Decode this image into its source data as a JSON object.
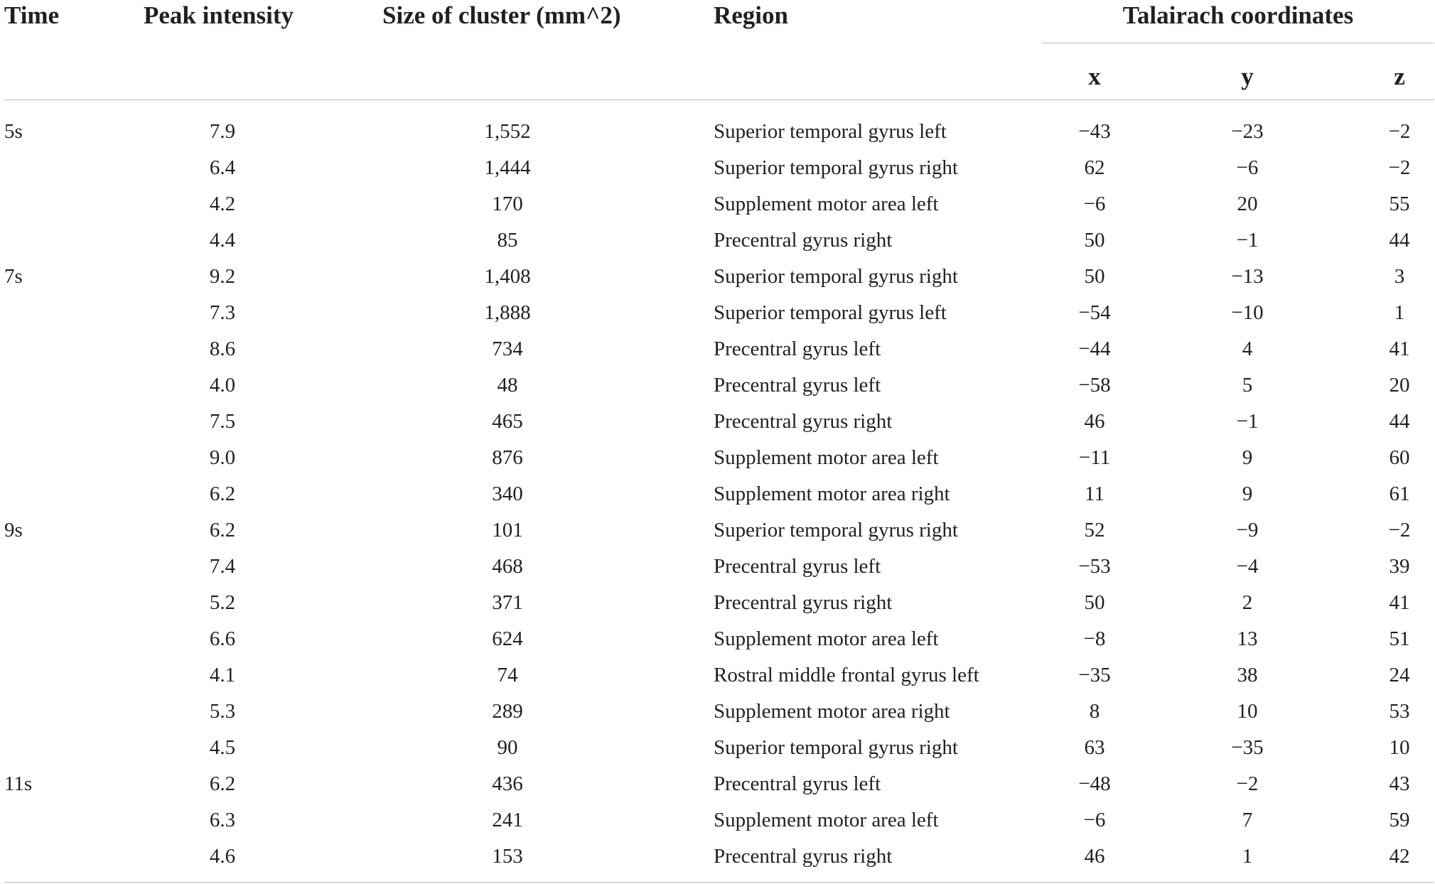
{
  "table": {
    "headers": {
      "time": "Time",
      "peak_intensity": "Peak intensity",
      "size_of_cluster": "Size of cluster (mm^2)",
      "region": "Region",
      "talairach": "Talairach coordinates",
      "x": "x",
      "y": "y",
      "z": "z"
    },
    "rows": [
      {
        "time": "5s",
        "peak": "7.9",
        "size": "1,552",
        "region": "Superior temporal gyrus left",
        "x": "−43",
        "y": "−23",
        "z": "−2"
      },
      {
        "time": "",
        "peak": "6.4",
        "size": "1,444",
        "region": "Superior temporal gyrus right",
        "x": "62",
        "y": "−6",
        "z": "−2"
      },
      {
        "time": "",
        "peak": "4.2",
        "size": "170",
        "region": "Supplement motor area left",
        "x": "−6",
        "y": "20",
        "z": "55"
      },
      {
        "time": "",
        "peak": "4.4",
        "size": "85",
        "region": "Precentral gyrus right",
        "x": "50",
        "y": "−1",
        "z": "44"
      },
      {
        "time": "7s",
        "peak": "9.2",
        "size": "1,408",
        "region": "Superior temporal gyrus right",
        "x": "50",
        "y": "−13",
        "z": "3"
      },
      {
        "time": "",
        "peak": "7.3",
        "size": "1,888",
        "region": "Superior temporal gyrus left",
        "x": "−54",
        "y": "−10",
        "z": "1"
      },
      {
        "time": "",
        "peak": "8.6",
        "size": "734",
        "region": "Precentral gyrus left",
        "x": "−44",
        "y": "4",
        "z": "41"
      },
      {
        "time": "",
        "peak": "4.0",
        "size": "48",
        "region": "Precentral gyrus left",
        "x": "−58",
        "y": "5",
        "z": "20"
      },
      {
        "time": "",
        "peak": "7.5",
        "size": "465",
        "region": "Precentral gyrus right",
        "x": "46",
        "y": "−1",
        "z": "44"
      },
      {
        "time": "",
        "peak": "9.0",
        "size": "876",
        "region": "Supplement motor area left",
        "x": "−11",
        "y": "9",
        "z": "60"
      },
      {
        "time": "",
        "peak": "6.2",
        "size": "340",
        "region": "Supplement motor area right",
        "x": "11",
        "y": "9",
        "z": "61"
      },
      {
        "time": "9s",
        "peak": "6.2",
        "size": "101",
        "region": "Superior temporal gyrus right",
        "x": "52",
        "y": "−9",
        "z": "−2"
      },
      {
        "time": "",
        "peak": "7.4",
        "size": "468",
        "region": "Precentral gyrus left",
        "x": "−53",
        "y": "−4",
        "z": "39"
      },
      {
        "time": "",
        "peak": "5.2",
        "size": "371",
        "region": "Precentral gyrus right",
        "x": "50",
        "y": "2",
        "z": "41"
      },
      {
        "time": "",
        "peak": "6.6",
        "size": "624",
        "region": "Supplement motor area left",
        "x": "−8",
        "y": "13",
        "z": "51"
      },
      {
        "time": "",
        "peak": "4.1",
        "size": "74",
        "region": "Rostral middle frontal gyrus left",
        "x": "−35",
        "y": "38",
        "z": "24"
      },
      {
        "time": "",
        "peak": "5.3",
        "size": "289",
        "region": "Supplement motor area right",
        "x": "8",
        "y": "10",
        "z": "53"
      },
      {
        "time": "",
        "peak": "4.5",
        "size": "90",
        "region": "Superior temporal gyrus right",
        "x": "63",
        "y": "−35",
        "z": "10"
      },
      {
        "time": "11s",
        "peak": "6.2",
        "size": "436",
        "region": "Precentral gyrus left",
        "x": "−48",
        "y": "−2",
        "z": "43"
      },
      {
        "time": "",
        "peak": "6.3",
        "size": "241",
        "region": "Supplement motor area left",
        "x": "−6",
        "y": "7",
        "z": "59"
      },
      {
        "time": "",
        "peak": "4.6",
        "size": "153",
        "region": "Precentral gyrus right",
        "x": "46",
        "y": "1",
        "z": "42"
      }
    ]
  }
}
